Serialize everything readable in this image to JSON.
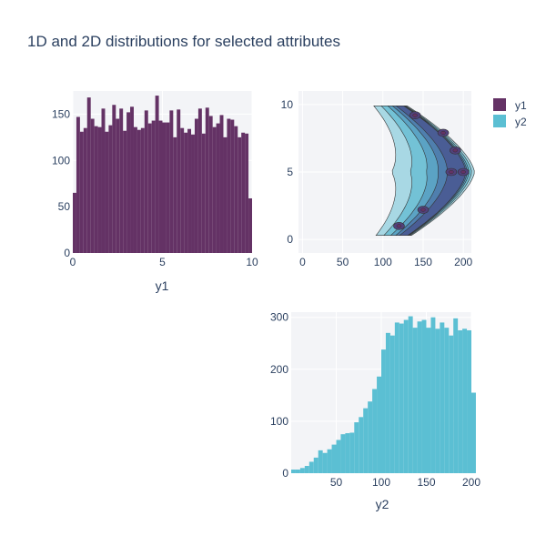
{
  "title": "1D and 2D distributions for selected attributes",
  "colors": {
    "y1": "#643265",
    "y2": "#5bbfd3",
    "bg": "#f3f4f7",
    "grid": "#ffffff",
    "text": "#2a3f5f"
  },
  "legend": {
    "items": [
      {
        "label": "y1",
        "color": "#643265"
      },
      {
        "label": "y2",
        "color": "#5bbfd3"
      }
    ]
  },
  "chart_data": [
    {
      "id": "hist-y1",
      "type": "bar",
      "xlabel": "y1",
      "ylabel": "",
      "xlim": [
        0,
        10
      ],
      "ylim": [
        0,
        175
      ],
      "xticks": [
        "0",
        "5",
        "10"
      ],
      "yticks": [
        "0",
        "50",
        "100",
        "150"
      ],
      "bin_width": 0.2,
      "values": [
        65,
        147,
        131,
        135,
        168,
        145,
        137,
        136,
        156,
        131,
        138,
        160,
        145,
        156,
        132,
        152,
        158,
        136,
        133,
        135,
        154,
        140,
        143,
        170,
        143,
        141,
        141,
        154,
        125,
        155,
        135,
        130,
        134,
        128,
        145,
        156,
        129,
        157,
        148,
        136,
        140,
        149,
        125,
        145,
        144,
        137,
        125,
        130,
        129,
        59
      ],
      "grid": true
    },
    {
      "id": "contour-y1-y2",
      "type": "contour",
      "x_label": "",
      "y_label": "",
      "xlim": [
        -5,
        210
      ],
      "ylim": [
        -1,
        11
      ],
      "xticks": [
        "0",
        "50",
        "100",
        "150",
        "200"
      ],
      "yticks": [
        "0",
        "5",
        "10"
      ],
      "x_series": "y2",
      "y_series": "y1",
      "shape": "C-shaped density band: points along y2 = 200 - 80*sin(pi*y1/10)*... peaking at y2~200 for y1~5, y2~120 for y1~1 and y1~9",
      "levels": 7,
      "colorscale": [
        "#ffffff",
        "#cfe8ef",
        "#a8d8e4",
        "#73c2d6",
        "#5ba3c4",
        "#4f7fae",
        "#4a5d95",
        "#51417c",
        "#643265"
      ],
      "grid": true
    },
    {
      "id": "hist-y2",
      "type": "bar",
      "xlabel": "y2",
      "ylabel": "",
      "xlim": [
        0,
        200
      ],
      "ylim": [
        0,
        310
      ],
      "xticks": [
        "50",
        "100",
        "150",
        "200"
      ],
      "yticks": [
        "0",
        "100",
        "200",
        "300"
      ],
      "bin_width": 5,
      "values": [
        7,
        7,
        10,
        14,
        22,
        30,
        44,
        39,
        46,
        55,
        64,
        75,
        77,
        78,
        98,
        108,
        125,
        138,
        162,
        186,
        238,
        270,
        265,
        290,
        288,
        295,
        302,
        280,
        292,
        295,
        280,
        300,
        278,
        290,
        280,
        265,
        298,
        275,
        278,
        275,
        155
      ],
      "grid": true
    }
  ]
}
